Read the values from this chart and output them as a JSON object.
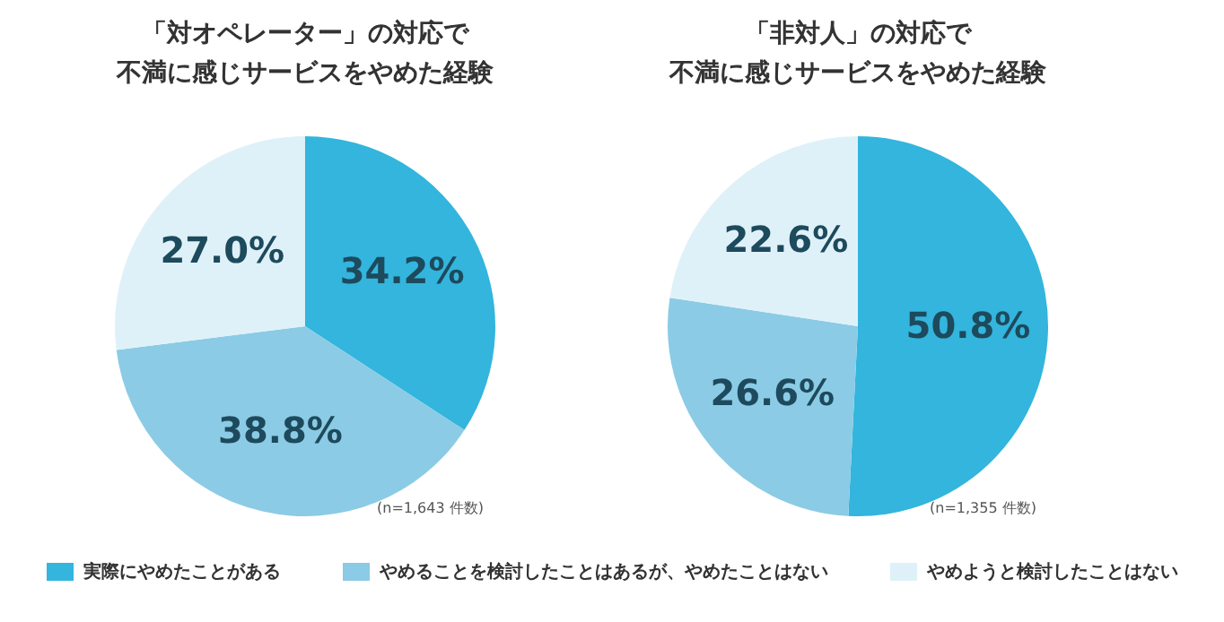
{
  "chart_data": [
    {
      "type": "pie",
      "title": "「対オペレーター」の対応で",
      "subtitle": "不満に感じサービスをやめた経験",
      "categories": [
        "実際にやめたことがある",
        "やめることを検討したことはあるが、やめたことはない",
        "やめようと検討したことはない"
      ],
      "values": [
        34.2,
        38.8,
        27.0
      ],
      "value_labels": [
        "34.2%",
        "38.8%",
        "27.0%"
      ],
      "colors": [
        "#33b5dd",
        "#8bcbe5",
        "#dff1f8"
      ],
      "annotations": [
        "(n=1,643 件数)"
      ],
      "legend": "bottom"
    },
    {
      "type": "pie",
      "title": "「非対人」の対応で",
      "subtitle": "不満に感じサービスをやめた経験",
      "categories": [
        null,
        null,
        null
      ],
      "values": [
        50.8,
        26.6,
        22.6
      ],
      "value_labels": [
        "50.8%",
        "26.6%",
        "22.6%"
      ],
      "colors": [
        "#33b5dd",
        "#8bcbe5",
        "#dff1f8"
      ],
      "annotations": [
        "(n=1,355 件数)"
      ]
    }
  ]
}
